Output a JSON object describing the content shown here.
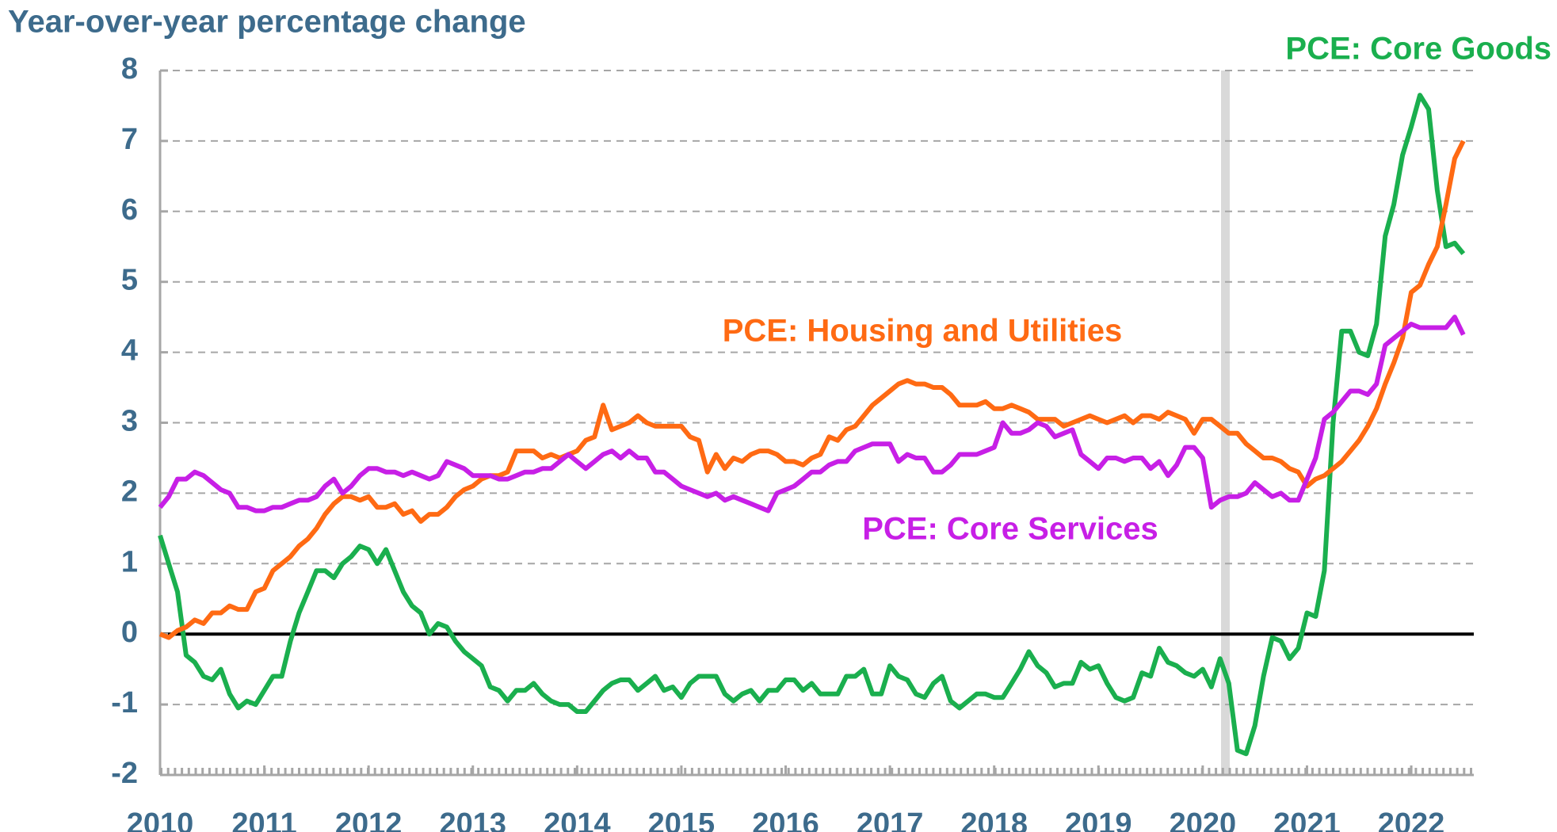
{
  "chart_data": {
    "type": "line",
    "title": "Year-over-year percentage change",
    "x": [
      2010,
      2010.083,
      2010.167,
      2010.25,
      2010.333,
      2010.417,
      2010.5,
      2010.583,
      2010.667,
      2010.75,
      2010.833,
      2010.917,
      2011,
      2011.083,
      2011.167,
      2011.25,
      2011.333,
      2011.417,
      2011.5,
      2011.583,
      2011.667,
      2011.75,
      2011.833,
      2011.917,
      2012,
      2012.083,
      2012.167,
      2012.25,
      2012.333,
      2012.417,
      2012.5,
      2012.583,
      2012.667,
      2012.75,
      2012.833,
      2012.917,
      2013,
      2013.083,
      2013.167,
      2013.25,
      2013.333,
      2013.417,
      2013.5,
      2013.583,
      2013.667,
      2013.75,
      2013.833,
      2013.917,
      2014,
      2014.083,
      2014.167,
      2014.25,
      2014.333,
      2014.417,
      2014.5,
      2014.583,
      2014.667,
      2014.75,
      2014.833,
      2014.917,
      2015,
      2015.083,
      2015.167,
      2015.25,
      2015.333,
      2015.417,
      2015.5,
      2015.583,
      2015.667,
      2015.75,
      2015.833,
      2015.917,
      2016,
      2016.083,
      2016.167,
      2016.25,
      2016.333,
      2016.417,
      2016.5,
      2016.583,
      2016.667,
      2016.75,
      2016.833,
      2016.917,
      2017,
      2017.083,
      2017.167,
      2017.25,
      2017.333,
      2017.417,
      2017.5,
      2017.583,
      2017.667,
      2017.75,
      2017.833,
      2017.917,
      2018,
      2018.083,
      2018.167,
      2018.25,
      2018.333,
      2018.417,
      2018.5,
      2018.583,
      2018.667,
      2018.75,
      2018.833,
      2018.917,
      2019,
      2019.083,
      2019.167,
      2019.25,
      2019.333,
      2019.417,
      2019.5,
      2019.583,
      2019.667,
      2019.75,
      2019.833,
      2019.917,
      2020,
      2020.083,
      2020.167,
      2020.25,
      2020.333,
      2020.417,
      2020.5,
      2020.583,
      2020.667,
      2020.75,
      2020.833,
      2020.917,
      2021,
      2021.083,
      2021.167,
      2021.25,
      2021.333,
      2021.417,
      2021.5,
      2021.583,
      2021.667,
      2021.75,
      2021.833,
      2021.917,
      2022,
      2022.083,
      2022.167,
      2022.25,
      2022.333,
      2022.417,
      2022.5
    ],
    "series": [
      {
        "name": "PCE: Core Goods",
        "color": "#1aaf4e",
        "values": [
          1.4,
          1.0,
          0.6,
          -0.3,
          -0.4,
          -0.6,
          -0.65,
          -0.5,
          -0.85,
          -1.05,
          -0.95,
          -1.0,
          -0.8,
          -0.6,
          -0.6,
          -0.1,
          0.3,
          0.6,
          0.9,
          0.9,
          0.8,
          1.0,
          1.1,
          1.25,
          1.2,
          1.0,
          1.2,
          0.9,
          0.6,
          0.4,
          0.3,
          0.0,
          0.15,
          0.1,
          -0.1,
          -0.25,
          -0.35,
          -0.45,
          -0.75,
          -0.8,
          -0.95,
          -0.8,
          -0.8,
          -0.7,
          -0.85,
          -0.95,
          -1.0,
          -1.0,
          -1.1,
          -1.1,
          -0.95,
          -0.8,
          -0.7,
          -0.65,
          -0.65,
          -0.8,
          -0.7,
          -0.6,
          -0.8,
          -0.75,
          -0.9,
          -0.7,
          -0.6,
          -0.6,
          -0.6,
          -0.85,
          -0.95,
          -0.85,
          -0.8,
          -0.95,
          -0.8,
          -0.8,
          -0.65,
          -0.65,
          -0.8,
          -0.7,
          -0.85,
          -0.85,
          -0.85,
          -0.6,
          -0.6,
          -0.5,
          -0.85,
          -0.85,
          -0.45,
          -0.6,
          -0.65,
          -0.85,
          -0.9,
          -0.7,
          -0.6,
          -0.95,
          -1.05,
          -0.95,
          -0.85,
          -0.85,
          -0.9,
          -0.9,
          -0.7,
          -0.5,
          -0.25,
          -0.45,
          -0.55,
          -0.75,
          -0.7,
          -0.7,
          -0.4,
          -0.5,
          -0.45,
          -0.7,
          -0.9,
          -0.95,
          -0.9,
          -0.55,
          -0.6,
          -0.2,
          -0.4,
          -0.45,
          -0.55,
          -0.6,
          -0.5,
          -0.75,
          -0.35,
          -0.7,
          -1.65,
          -1.7,
          -1.3,
          -0.6,
          -0.05,
          -0.1,
          -0.35,
          -0.2,
          0.3,
          0.25,
          0.9,
          3.0,
          4.3,
          4.3,
          4.0,
          3.95,
          4.4,
          5.65,
          6.1,
          6.8,
          7.2,
          7.65,
          7.45,
          6.3,
          5.5,
          5.55,
          5.4
        ]
      },
      {
        "name": "PCE: Housing and Utilities",
        "color": "#ff6a13",
        "values": [
          0.0,
          -0.05,
          0.05,
          0.1,
          0.2,
          0.15,
          0.3,
          0.3,
          0.4,
          0.35,
          0.35,
          0.6,
          0.65,
          0.9,
          1.0,
          1.1,
          1.25,
          1.35,
          1.5,
          1.7,
          1.85,
          1.95,
          1.95,
          1.9,
          1.95,
          1.8,
          1.8,
          1.85,
          1.7,
          1.75,
          1.6,
          1.7,
          1.7,
          1.8,
          1.95,
          2.05,
          2.1,
          2.2,
          2.25,
          2.25,
          2.3,
          2.6,
          2.6,
          2.6,
          2.5,
          2.55,
          2.5,
          2.55,
          2.6,
          2.75,
          2.8,
          3.25,
          2.9,
          2.95,
          3.0,
          3.1,
          3.0,
          2.95,
          2.95,
          2.95,
          2.95,
          2.8,
          2.75,
          2.3,
          2.55,
          2.35,
          2.5,
          2.45,
          2.55,
          2.6,
          2.6,
          2.55,
          2.45,
          2.45,
          2.4,
          2.5,
          2.55,
          2.8,
          2.75,
          2.9,
          2.95,
          3.1,
          3.25,
          3.35,
          3.45,
          3.55,
          3.6,
          3.55,
          3.55,
          3.5,
          3.5,
          3.4,
          3.25,
          3.25,
          3.25,
          3.3,
          3.2,
          3.2,
          3.25,
          3.2,
          3.15,
          3.05,
          3.05,
          3.05,
          2.95,
          3.0,
          3.05,
          3.1,
          3.05,
          3.0,
          3.05,
          3.1,
          3.0,
          3.1,
          3.1,
          3.05,
          3.15,
          3.1,
          3.05,
          2.85,
          3.05,
          3.05,
          2.95,
          2.85,
          2.85,
          2.7,
          2.6,
          2.5,
          2.5,
          2.45,
          2.35,
          2.3,
          2.1,
          2.2,
          2.25,
          2.35,
          2.45,
          2.6,
          2.75,
          2.95,
          3.2,
          3.55,
          3.85,
          4.2,
          4.85,
          4.95,
          5.25,
          5.5,
          6.1,
          6.75,
          7.0
        ]
      },
      {
        "name": "PCE: Core Services",
        "color": "#c71fe6",
        "values": [
          1.8,
          1.95,
          2.2,
          2.2,
          2.3,
          2.25,
          2.15,
          2.05,
          2.0,
          1.8,
          1.8,
          1.75,
          1.75,
          1.8,
          1.8,
          1.85,
          1.9,
          1.9,
          1.95,
          2.1,
          2.2,
          2.0,
          2.1,
          2.25,
          2.35,
          2.35,
          2.3,
          2.3,
          2.25,
          2.3,
          2.25,
          2.2,
          2.25,
          2.45,
          2.4,
          2.35,
          2.25,
          2.25,
          2.25,
          2.2,
          2.2,
          2.25,
          2.3,
          2.3,
          2.35,
          2.35,
          2.45,
          2.55,
          2.45,
          2.35,
          2.45,
          2.55,
          2.6,
          2.5,
          2.6,
          2.5,
          2.5,
          2.3,
          2.3,
          2.2,
          2.1,
          2.05,
          2.0,
          1.95,
          2.0,
          1.9,
          1.95,
          1.9,
          1.85,
          1.8,
          1.75,
          2.0,
          2.05,
          2.1,
          2.2,
          2.3,
          2.3,
          2.4,
          2.45,
          2.45,
          2.6,
          2.65,
          2.7,
          2.7,
          2.7,
          2.45,
          2.55,
          2.5,
          2.5,
          2.3,
          2.3,
          2.4,
          2.55,
          2.55,
          2.55,
          2.6,
          2.65,
          3.0,
          2.85,
          2.85,
          2.9,
          3.0,
          2.95,
          2.8,
          2.85,
          2.9,
          2.55,
          2.45,
          2.35,
          2.5,
          2.5,
          2.45,
          2.5,
          2.5,
          2.35,
          2.45,
          2.25,
          2.4,
          2.65,
          2.65,
          2.5,
          1.8,
          1.9,
          1.95,
          1.95,
          2.0,
          2.15,
          2.05,
          1.95,
          2.0,
          1.9,
          1.9,
          2.2,
          2.5,
          3.05,
          3.15,
          3.3,
          3.45,
          3.45,
          3.4,
          3.55,
          4.1,
          4.2,
          4.3,
          4.4,
          4.35,
          4.35,
          4.35,
          4.35,
          4.5,
          4.25
        ]
      }
    ],
    "xlim": [
      2010,
      2022.6
    ],
    "xticks": [
      2010,
      2011,
      2012,
      2013,
      2014,
      2015,
      2016,
      2017,
      2018,
      2019,
      2020,
      2021,
      2022
    ],
    "ylim": [
      -2,
      8
    ],
    "yticks": [
      -2,
      -1,
      0,
      1,
      2,
      3,
      4,
      5,
      6,
      7,
      8
    ],
    "grid": true
  }
}
